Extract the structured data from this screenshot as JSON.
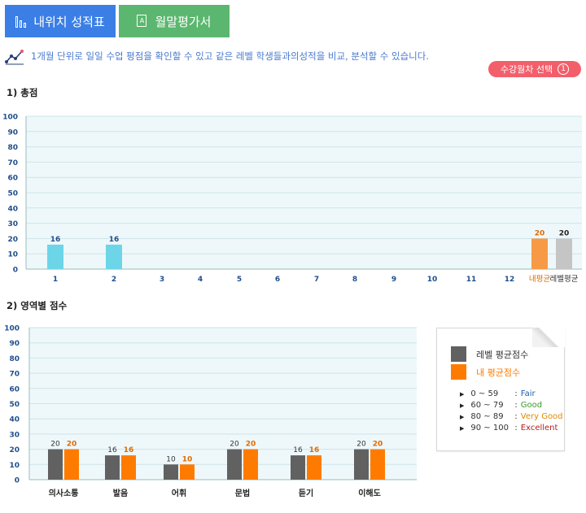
{
  "tabs": [
    {
      "label": "내위치 성적표",
      "icon": "bar-chart-icon",
      "color": "#3b7fe6"
    },
    {
      "label": "월말평가서",
      "icon": "document-icon",
      "color": "#5bb76f"
    }
  ],
  "info": {
    "icon": "trend-line-icon",
    "text": "1개월 단위로 일일 수업 평점을 확인할 수 있고 같은 레벨 학생들과의성적을 비교, 분석할 수 있습니다."
  },
  "select_button": {
    "label": "수강월차 선택",
    "number": "1",
    "color": "#f25f6b"
  },
  "section1_title": "1) 총점",
  "section2_title": "2) 영역별 점수",
  "chart_data": [
    {
      "type": "bar",
      "categories": [
        "1",
        "2",
        "3",
        "4",
        "5",
        "6",
        "7",
        "8",
        "9",
        "10",
        "11",
        "12",
        "내평균",
        "레벨평균"
      ],
      "values": [
        16,
        16,
        null,
        null,
        null,
        null,
        null,
        null,
        null,
        null,
        null,
        null,
        20,
        20
      ],
      "data_labels": [
        "16",
        "16",
        "",
        "",
        "",
        "",
        "",
        "",
        "",
        "",
        "",
        "",
        "20",
        "20"
      ],
      "colors": {
        "month": "#6dd5e8",
        "my_avg": "#f79a46",
        "level_avg": "#c5c5c5"
      },
      "ylim": [
        0,
        100
      ],
      "yticks": [
        "0",
        "10",
        "20",
        "30",
        "40",
        "50",
        "60",
        "70",
        "80",
        "90",
        "100"
      ],
      "grid": true
    },
    {
      "type": "bar",
      "categories": [
        "의사소통",
        "발음",
        "어휘",
        "문법",
        "듣기",
        "이해도"
      ],
      "series": [
        {
          "name": "레벨 평균점수",
          "values": [
            20,
            16,
            10,
            20,
            16,
            20
          ],
          "color": "#616161"
        },
        {
          "name": "내 평균점수",
          "values": [
            20,
            16,
            10,
            20,
            16,
            20
          ],
          "color": "#ff7b00"
        }
      ],
      "ylim": [
        0,
        100
      ],
      "yticks": [
        "0",
        "10",
        "20",
        "30",
        "40",
        "50",
        "60",
        "70",
        "80",
        "90",
        "100"
      ],
      "grid": true,
      "legend_position": "right"
    }
  ],
  "legend": {
    "items": [
      {
        "label": "레벨 평균점수",
        "color": "#616161",
        "text_color": "#333333"
      },
      {
        "label": "내 평균점수",
        "color": "#ff7b00",
        "text_color": "#ff7b00"
      }
    ],
    "grades": [
      {
        "range": "0 ~  59",
        "label": "Fair",
        "color": "#1e5fb4"
      },
      {
        "range": "60 ~  79",
        "label": "Good",
        "color": "#3a9a2b"
      },
      {
        "range": "80 ~  89",
        "label": "Very Good",
        "color": "#e08a00"
      },
      {
        "range": "90 ~ 100",
        "label": "Excellent",
        "color": "#b81d1d"
      }
    ]
  }
}
